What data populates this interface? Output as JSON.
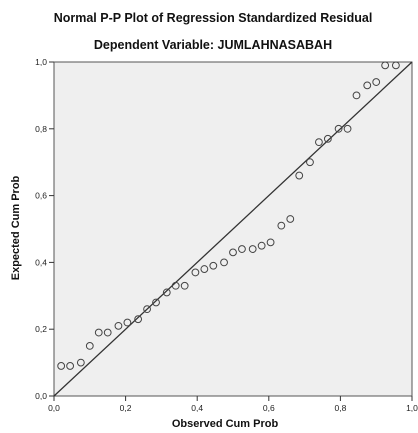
{
  "chart_data": {
    "type": "scatter",
    "title": "Normal P-P Plot of Regression Standardized Residual",
    "subtitle": "Dependent Variable: JUMLAHNASABAH",
    "xlabel": "Observed Cum Prob",
    "ylabel": "Expected Cum Prob",
    "xlim": [
      0,
      1
    ],
    "ylim": [
      0,
      1
    ],
    "x_ticks": [
      0.0,
      0.2,
      0.4,
      0.6,
      0.8,
      1.0
    ],
    "y_ticks": [
      0.0,
      0.2,
      0.4,
      0.6,
      0.8,
      1.0
    ],
    "x_tick_labels": [
      "0,0",
      "0,2",
      "0,4",
      "0,6",
      "0,8",
      "1,0"
    ],
    "y_tick_labels": [
      "0,0",
      "0,2",
      "0,4",
      "0,6",
      "0,8",
      "1,0"
    ],
    "reference_line": {
      "from": [
        0,
        0
      ],
      "to": [
        1,
        1
      ]
    },
    "plot_background": "#efefef",
    "marker_color": "#444444",
    "grid": false,
    "points": [
      {
        "x": 0.02,
        "y": 0.09
      },
      {
        "x": 0.045,
        "y": 0.09
      },
      {
        "x": 0.075,
        "y": 0.1
      },
      {
        "x": 0.1,
        "y": 0.15
      },
      {
        "x": 0.125,
        "y": 0.19
      },
      {
        "x": 0.15,
        "y": 0.19
      },
      {
        "x": 0.18,
        "y": 0.21
      },
      {
        "x": 0.205,
        "y": 0.22
      },
      {
        "x": 0.235,
        "y": 0.23
      },
      {
        "x": 0.26,
        "y": 0.26
      },
      {
        "x": 0.285,
        "y": 0.28
      },
      {
        "x": 0.315,
        "y": 0.31
      },
      {
        "x": 0.34,
        "y": 0.33
      },
      {
        "x": 0.365,
        "y": 0.33
      },
      {
        "x": 0.395,
        "y": 0.37
      },
      {
        "x": 0.42,
        "y": 0.38
      },
      {
        "x": 0.445,
        "y": 0.39
      },
      {
        "x": 0.475,
        "y": 0.4
      },
      {
        "x": 0.5,
        "y": 0.43
      },
      {
        "x": 0.525,
        "y": 0.44
      },
      {
        "x": 0.555,
        "y": 0.44
      },
      {
        "x": 0.58,
        "y": 0.45
      },
      {
        "x": 0.605,
        "y": 0.46
      },
      {
        "x": 0.635,
        "y": 0.51
      },
      {
        "x": 0.66,
        "y": 0.53
      },
      {
        "x": 0.685,
        "y": 0.66
      },
      {
        "x": 0.715,
        "y": 0.7
      },
      {
        "x": 0.74,
        "y": 0.76
      },
      {
        "x": 0.765,
        "y": 0.77
      },
      {
        "x": 0.795,
        "y": 0.8
      },
      {
        "x": 0.82,
        "y": 0.8
      },
      {
        "x": 0.845,
        "y": 0.9
      },
      {
        "x": 0.875,
        "y": 0.93
      },
      {
        "x": 0.9,
        "y": 0.94
      },
      {
        "x": 0.925,
        "y": 0.99
      },
      {
        "x": 0.955,
        "y": 0.99
      }
    ]
  }
}
